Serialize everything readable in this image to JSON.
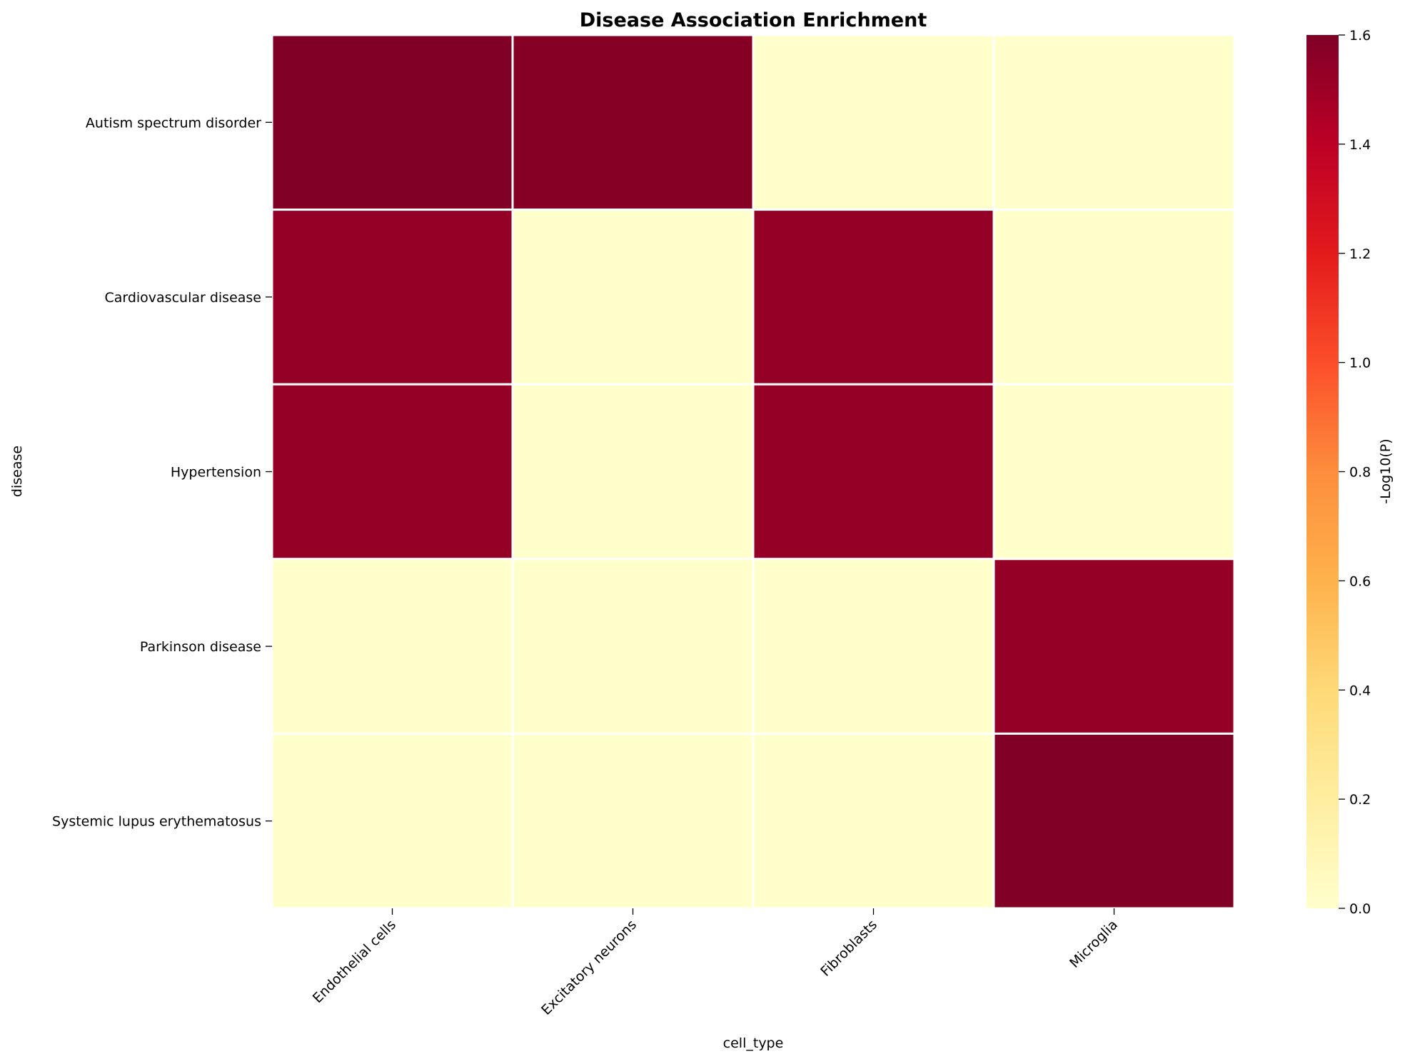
{
  "chart_data": {
    "type": "heatmap",
    "title": "Disease Association Enrichment",
    "xlabel": "cell_type",
    "ylabel": "disease",
    "x_categories": [
      "Endothelial cells",
      "Excitatory neurons",
      "Fibroblasts",
      "Microglia"
    ],
    "y_categories": [
      "Autism spectrum disorder",
      "Cardiovascular disease",
      "Hypertension",
      "Parkinson disease",
      "Systemic lupus erythematosus"
    ],
    "values": [
      [
        1.6,
        1.58,
        0.0,
        0.0
      ],
      [
        1.53,
        0.0,
        1.53,
        0.0
      ],
      [
        1.53,
        0.0,
        1.53,
        0.0
      ],
      [
        0.0,
        0.0,
        0.0,
        1.53
      ],
      [
        0.0,
        0.0,
        0.0,
        1.6
      ]
    ],
    "colorbar": {
      "label": "-Log10(P)",
      "min": 0.0,
      "max": 1.6,
      "ticks": [
        "0.0",
        "0.2",
        "0.4",
        "0.6",
        "0.8",
        "1.0",
        "1.2",
        "1.4",
        "1.6"
      ],
      "colormap": [
        "#ffffcc",
        "#ffeda0",
        "#fed976",
        "#feb24c",
        "#fd8d3c",
        "#fc4e2a",
        "#e31a1c",
        "#bd0026",
        "#800026"
      ]
    },
    "grid": false,
    "cell_border_color": "#ffffff"
  }
}
